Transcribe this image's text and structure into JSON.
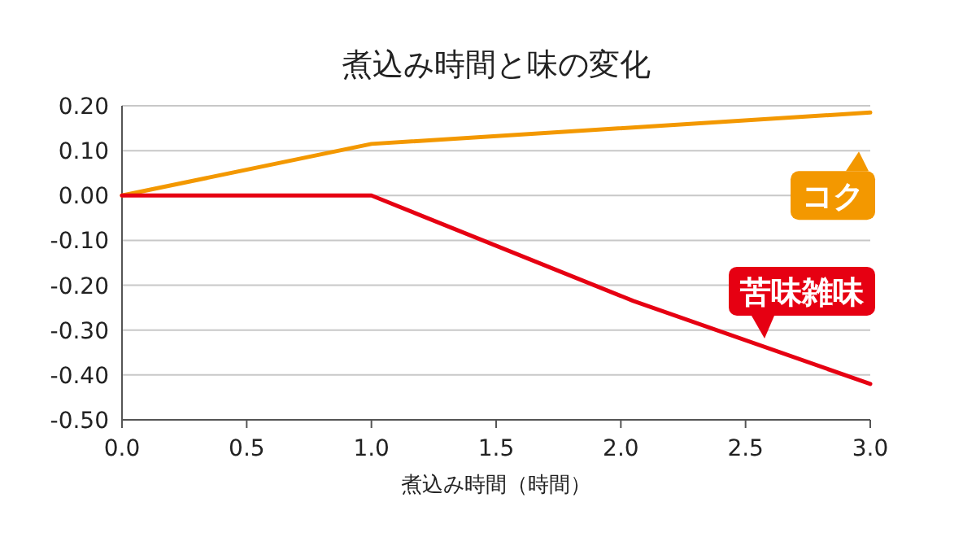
{
  "chart_data": {
    "type": "line",
    "title": "煮込み時間と味の変化",
    "xlabel": "煮込み時間（時間）",
    "xlim": [
      0,
      3
    ],
    "xticks": [
      {
        "value": 0,
        "label": "0.0"
      },
      {
        "value": 0.5,
        "label": "0.5"
      },
      {
        "value": 1,
        "label": "1.0"
      },
      {
        "value": 1.5,
        "label": "1.5"
      },
      {
        "value": 2,
        "label": "2.0"
      },
      {
        "value": 2.5,
        "label": "2.5"
      },
      {
        "value": 3,
        "label": "3.0"
      }
    ],
    "ylim": [
      -0.5,
      0.2
    ],
    "yticks": [
      {
        "value": 0.2,
        "label": "0.20"
      },
      {
        "value": 0.1,
        "label": "0.10"
      },
      {
        "value": 0,
        "label": "0.00"
      },
      {
        "value": -0.1,
        "label": "-0.10"
      },
      {
        "value": -0.2,
        "label": "-0.20"
      },
      {
        "value": -0.3,
        "label": "-0.30"
      },
      {
        "value": -0.4,
        "label": "-0.40"
      },
      {
        "value": -0.5,
        "label": "-0.50"
      }
    ],
    "grid": "y",
    "marker": "none",
    "line_style": "solid",
    "series": [
      {
        "name": "コク",
        "color": "#f39800",
        "x": [
          0,
          1,
          3
        ],
        "values": [
          0,
          0.115,
          0.185
        ]
      },
      {
        "name": "苦味雑味",
        "color": "#e60012",
        "x": [
          0,
          1,
          2.05,
          3
        ],
        "values": [
          0,
          0,
          -0.235,
          -0.42
        ]
      }
    ]
  }
}
